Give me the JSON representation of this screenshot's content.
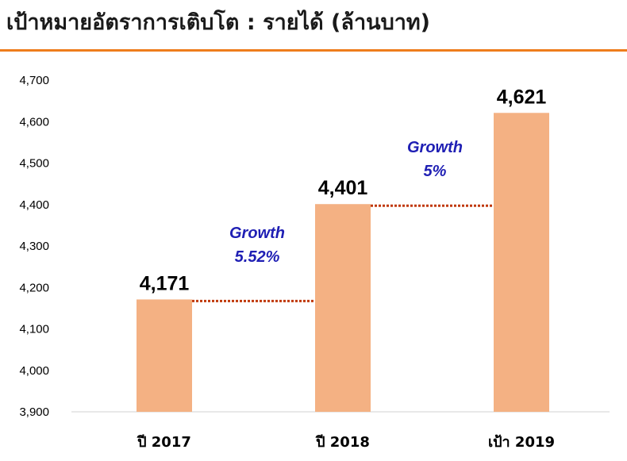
{
  "header": {
    "title": "เป้าหมายอัตราการเติบโต : รายได้ (ล้านบาท)",
    "accent_color": "#ee7d1c"
  },
  "chart_data": {
    "type": "bar",
    "title": "เป้าหมายอัตราการเติบโต : รายได้ (ล้านบาท)",
    "categories": [
      "ปี 2017",
      "ปี 2018",
      "เป้า 2019"
    ],
    "values": [
      4171,
      4401,
      4621
    ],
    "data_labels": [
      "4,171",
      "4,401",
      "4,621"
    ],
    "ylim": [
      3900,
      4700
    ],
    "yticks": [
      "3,900",
      "4,000",
      "4,100",
      "4,200",
      "4,300",
      "4,400",
      "4,500",
      "4,600",
      "4,700"
    ],
    "ytick_values": [
      3900,
      4000,
      4100,
      4200,
      4300,
      4400,
      4500,
      4600,
      4700
    ],
    "grid": false,
    "bar_color": "#f4b183",
    "connector_color": "#c0390b",
    "annotations": [
      {
        "line1": "Growth",
        "line2": "5.52%",
        "color": "#1f1fb4"
      },
      {
        "line1": "Growth",
        "line2": "5%",
        "color": "#1f1fb4"
      }
    ]
  }
}
